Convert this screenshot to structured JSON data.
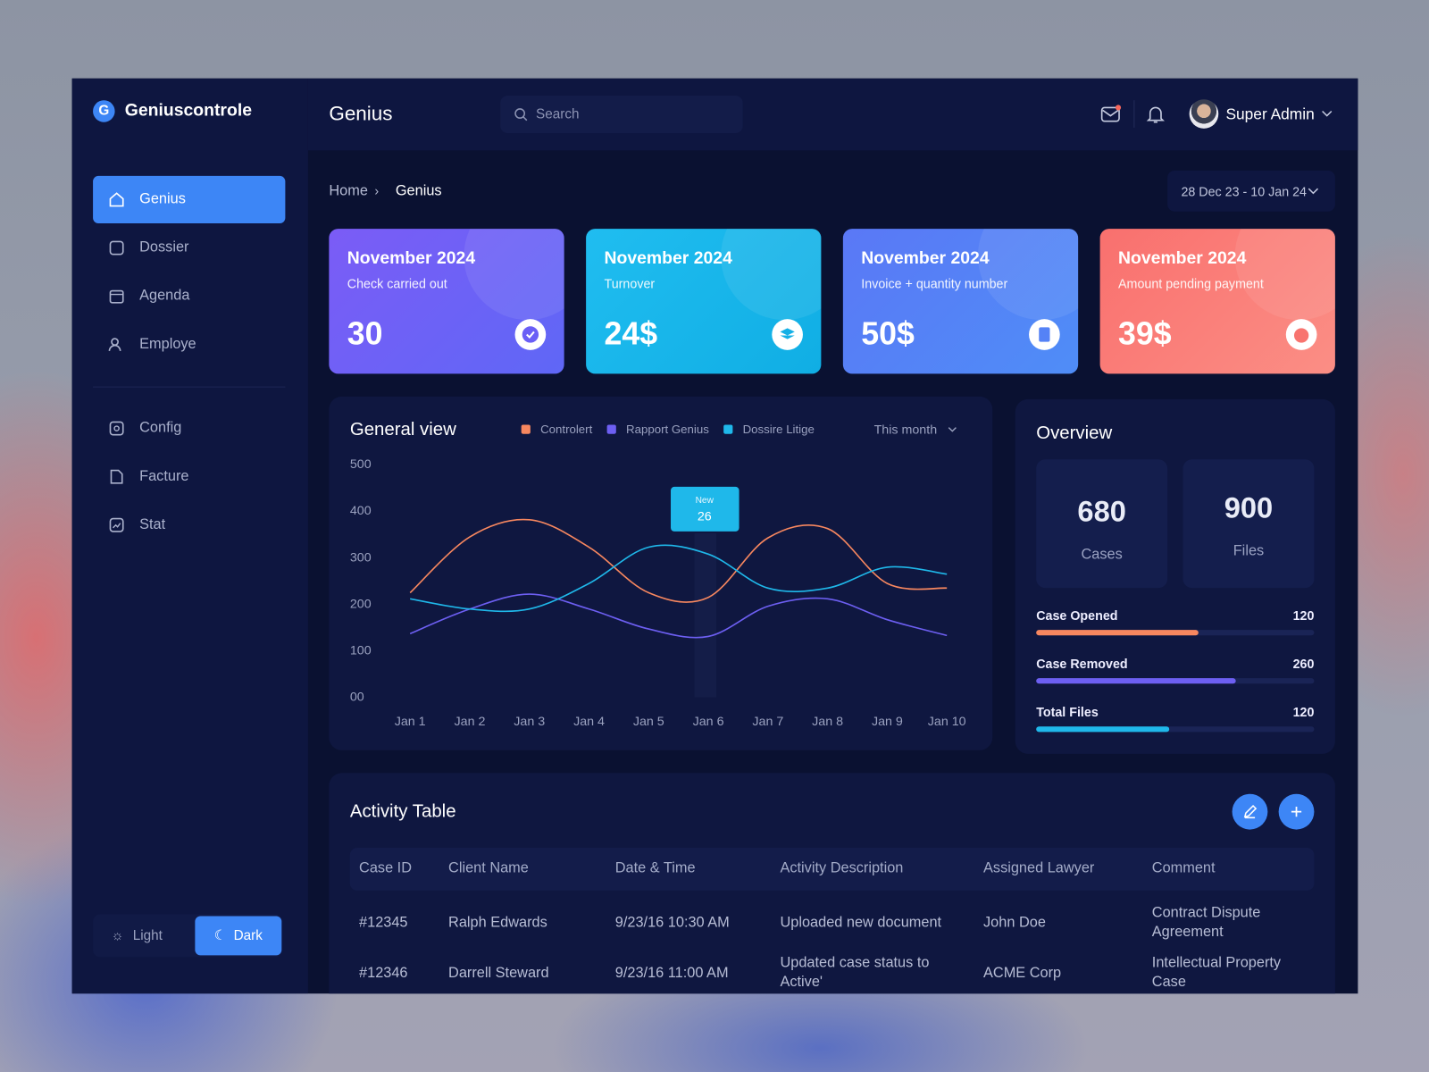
{
  "brand": "Geniuscontrole",
  "brand_initial": "G",
  "header": {
    "title": "Genius",
    "search_placeholder": "Search",
    "user": "Super Admin"
  },
  "nav": [
    "Genius",
    "Dossier",
    "Agenda",
    "Employe",
    "Config",
    "Facture",
    "Stat"
  ],
  "theme": [
    "Light",
    "Dark"
  ],
  "breadcrumb": [
    "Home",
    "Genius"
  ],
  "date_range": "28 Dec 23 - 10 Jan 24",
  "stats": [
    {
      "period": "November 2024",
      "label": "Check carried out",
      "value": "30"
    },
    {
      "period": "November 2024",
      "label": "Turnover",
      "value": "24$"
    },
    {
      "period": "November 2024",
      "label": "Invoice + quantity number",
      "value": "50$"
    },
    {
      "period": "November 2024",
      "label": "Amount pending payment",
      "value": "39$"
    }
  ],
  "general_view": {
    "type": "line",
    "title": "General view",
    "filter": "This month",
    "categories": [
      "Jan 1",
      "Jan 2",
      "Jan 3",
      "Jan 4",
      "Jan 5",
      "Jan 6",
      "Jan 7",
      "Jan 8",
      "Jan 9",
      "Jan 10"
    ],
    "series": [
      {
        "name": "Controlert",
        "color": "#f7875f",
        "values": [
          225,
          345,
          382,
          323,
          225,
          215,
          343,
          363,
          245,
          235
        ]
      },
      {
        "name": "Rapport Genius",
        "color": "#6d5ff2",
        "values": [
          137,
          190,
          222,
          190,
          147,
          131,
          196,
          212,
          167,
          133
        ]
      },
      {
        "name": "Dossire Litige",
        "color": "#1fb8ea",
        "values": [
          212,
          190,
          190,
          245,
          323,
          308,
          235,
          235,
          280,
          265
        ]
      }
    ],
    "ylim": [
      0,
      500
    ],
    "yticks": [
      {
        "value": 0,
        "label": "00"
      },
      100,
      200,
      300,
      400,
      500
    ],
    "tooltip": {
      "label": "New",
      "value": 26
    }
  },
  "overview": {
    "title": "Overview",
    "tiles": [
      {
        "value": 680,
        "label": "Cases"
      },
      {
        "value": 900,
        "label": "Files"
      }
    ],
    "bars": [
      {
        "label": "Case Opened",
        "value": 120
      },
      {
        "label": "Case Removed",
        "value": 260
      },
      {
        "label": "Total Files",
        "value": 120
      }
    ]
  },
  "activity_table": {
    "title": "Activity Table",
    "columns": [
      "Case ID",
      "Client Name",
      "Date & Time",
      "Activity Description",
      "Assigned Lawyer",
      "Comment"
    ],
    "rows": [
      [
        "#12345",
        "Ralph Edwards",
        "9/23/16 10:30 AM",
        "Uploaded new document",
        "John Doe",
        "Contract Dispute Agreement"
      ],
      [
        "#12346",
        "Darrell Steward",
        "9/23/16 11:00 AM",
        "Updated case status to Active'",
        "ACME Corp",
        "Intellectual Property Case"
      ]
    ]
  }
}
